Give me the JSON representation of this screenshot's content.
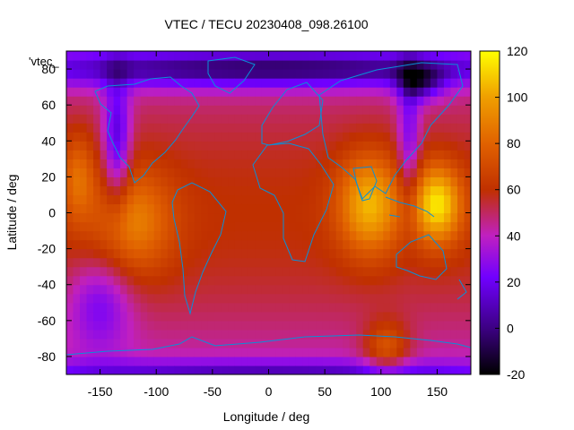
{
  "chart_data": {
    "type": "heatmap",
    "title": "VTEC / TECU 20230408_098.26100",
    "xlabel": "Longitude / deg",
    "ylabel": "Latitude / deg",
    "xlim": [
      -180,
      180
    ],
    "ylim": [
      -90,
      90
    ],
    "x_ticks": [
      -150,
      -100,
      -50,
      0,
      50,
      100,
      150
    ],
    "y_ticks": [
      -80,
      -60,
      -40,
      -20,
      0,
      20,
      40,
      60,
      80
    ],
    "colorbar": {
      "min": -20,
      "max": 120,
      "ticks": [
        -20,
        0,
        20,
        40,
        60,
        80,
        100,
        120
      ],
      "palette": [
        "#000000",
        "#3b0080",
        "#7000ff",
        "#c020c0",
        "#c03000",
        "#e06000",
        "#f0a000",
        "#ffff00"
      ]
    },
    "legend_entry": "'vtec_",
    "overlay": "coastlines",
    "overlay_color": "#0a8fd8",
    "grid": false
  }
}
